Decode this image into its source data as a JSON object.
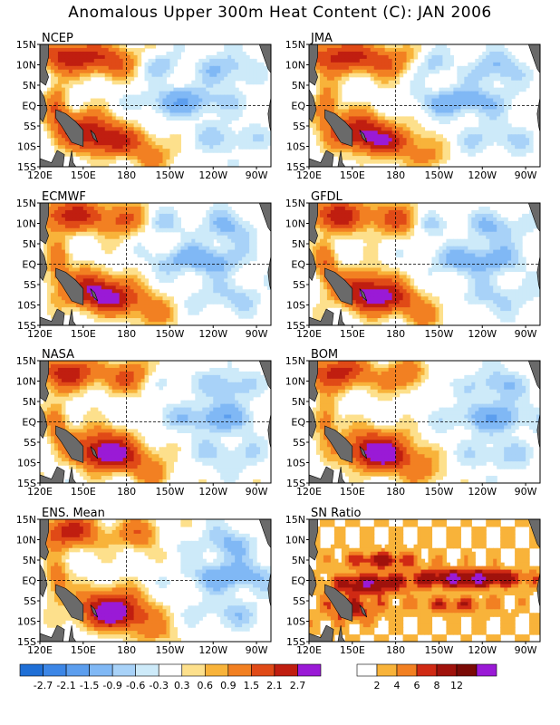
{
  "figure": {
    "title": "Anomalous Upper 300m Heat Content (C): JAN 2006"
  },
  "chart_data": {
    "type": "heatmap",
    "panels": [
      {
        "name": "NCEP",
        "field": "anomaly"
      },
      {
        "name": "JMA",
        "field": "anomaly"
      },
      {
        "name": "ECMWF",
        "field": "anomaly"
      },
      {
        "name": "GFDL",
        "field": "anomaly"
      },
      {
        "name": "NASA",
        "field": "anomaly"
      },
      {
        "name": "BOM",
        "field": "anomaly"
      },
      {
        "name": "ENS. Mean",
        "field": "anomaly"
      },
      {
        "name": "SN Ratio",
        "field": "snr"
      }
    ],
    "x_ticks": [
      "120E",
      "150E",
      "180",
      "150W",
      "120W",
      "90W"
    ],
    "y_ticks": [
      "15N",
      "10N",
      "5N",
      "EQ",
      "5S",
      "10S",
      "15S"
    ],
    "xlim": [
      "120E",
      "80W"
    ],
    "ylim": [
      "15S",
      "15N"
    ],
    "reference_lines": [
      "EQ",
      "180"
    ],
    "anomaly_colorbar": {
      "levels": [
        "-2.7",
        "-2.1",
        "-1.5",
        "-0.9",
        "-0.6",
        "-0.3",
        "0.3",
        "0.6",
        "0.9",
        "1.5",
        "2.1",
        "2.7"
      ],
      "colors": [
        "#1f6fd6",
        "#3c86e6",
        "#5c9eee",
        "#80b8f5",
        "#a8d2f8",
        "#cdeaf9",
        "#ffffff",
        "#fde08c",
        "#f8b33a",
        "#f28022",
        "#e04a17",
        "#c01e10",
        "#98100a",
        "#9a1ad6"
      ]
    },
    "snr_colorbar": {
      "levels": [
        "2",
        "4",
        "6",
        "8",
        "12"
      ],
      "colors": [
        "#ffffff",
        "#f8b33a",
        "#f28022",
        "#d02a14",
        "#a0120c",
        "#7a0a06",
        "#9a1ad6"
      ]
    },
    "features": [
      {
        "panel": "all anomaly panels",
        "description_values": "warm core ~1.5 to 2.7 in western Pacific 0-10S and 5-15N near 150E-180; cool core ~-0.6 to -1.5 along EQ 150W-110W"
      },
      {
        "panel": "SN Ratio",
        "description_values": "values 8-12 along equator 150E-90W and near 5N"
      }
    ]
  }
}
